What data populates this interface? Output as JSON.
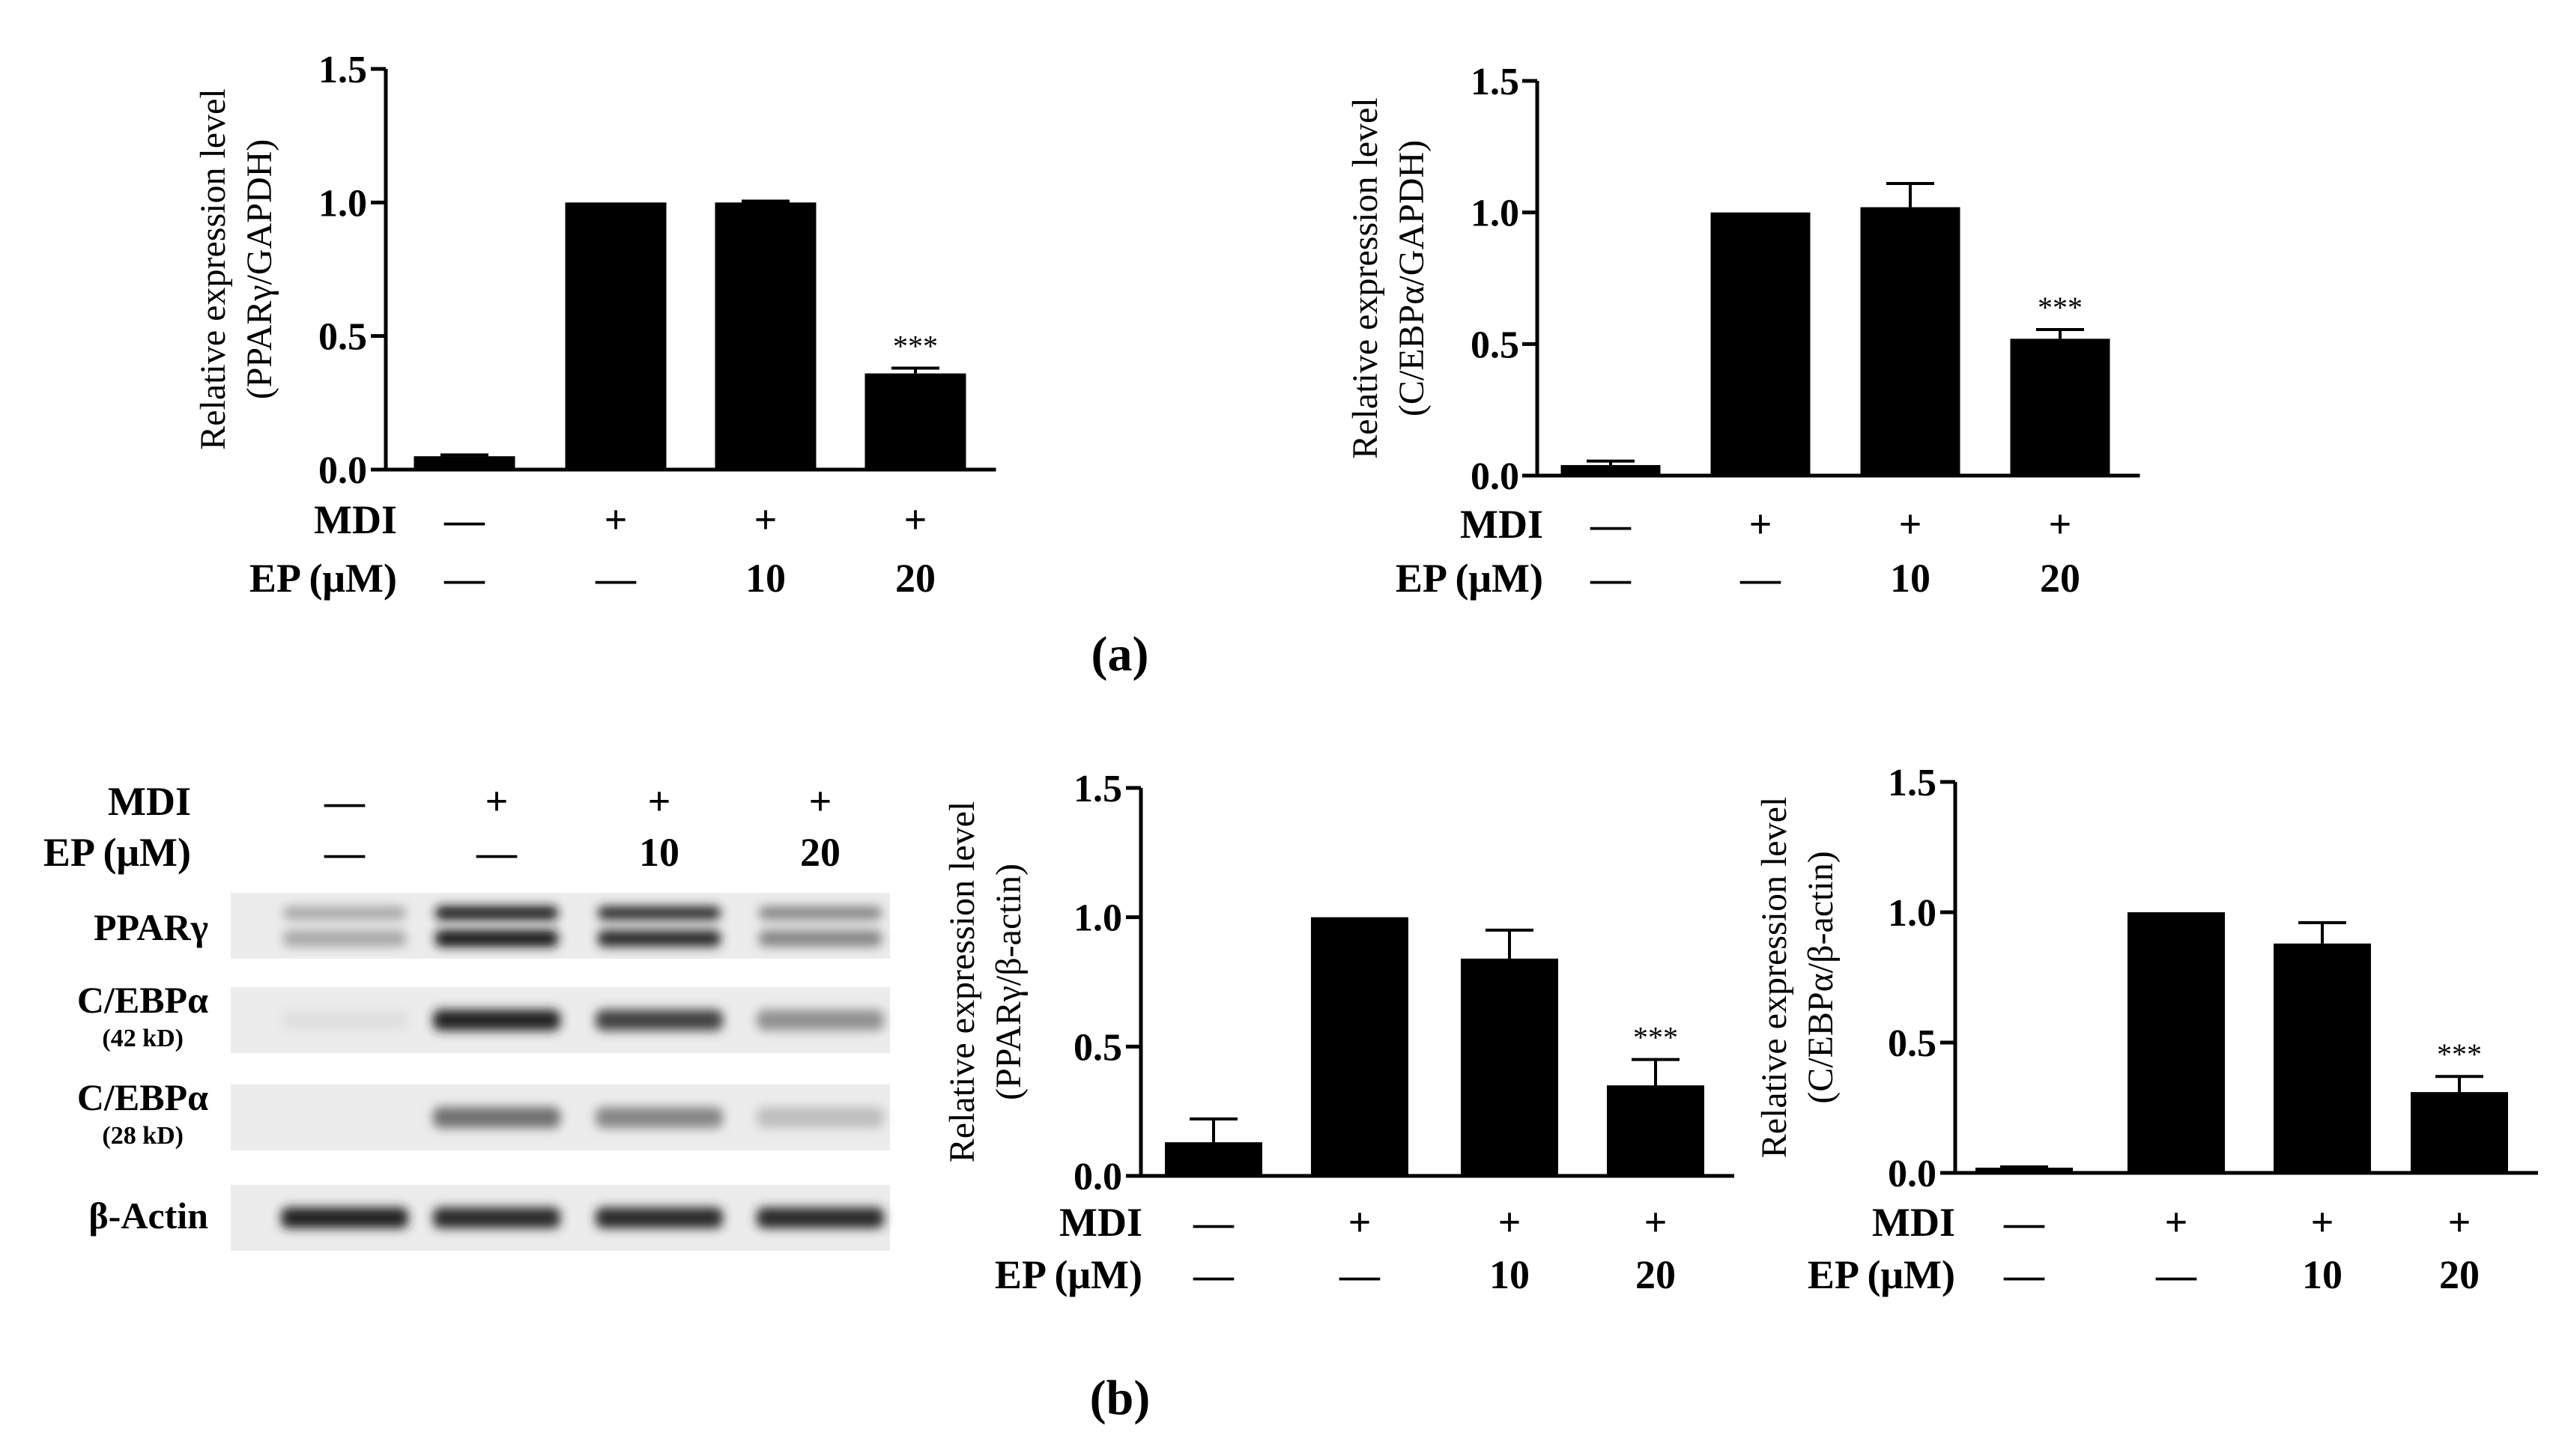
{
  "panel_labels": [
    "(a)",
    "(b)"
  ],
  "blot": {
    "conditions": [
      {
        "label": "MDI",
        "values": [
          "—",
          "+",
          "+",
          "+"
        ]
      },
      {
        "label": "EP (μM)",
        "values": [
          "—",
          "—",
          "10",
          "20"
        ]
      }
    ],
    "rows": [
      {
        "label": "PPARγ",
        "sublabel": "",
        "intensity": [
          0.3,
          0.95,
          0.85,
          0.45
        ],
        "double": true
      },
      {
        "label": "C/EBPα",
        "sublabel": "(42 kD)",
        "intensity": [
          0.05,
          0.9,
          0.75,
          0.4
        ],
        "double": false
      },
      {
        "label": "C/EBPα",
        "sublabel": "(28 kD)",
        "intensity": [
          0.0,
          0.55,
          0.45,
          0.2
        ],
        "double": false
      },
      {
        "label": "β-Actin",
        "sublabel": "",
        "intensity": [
          0.9,
          0.85,
          0.85,
          0.85
        ],
        "double": false
      }
    ]
  },
  "chart_data": [
    {
      "type": "bar",
      "panel": "(a)",
      "ylabel_line1": "Relative expression level",
      "ylabel_line2": "(PPARγ/GAPDH)",
      "ylim": [
        0,
        1.5
      ],
      "yticks": [
        "0.0",
        "0.5",
        "1.0",
        "1.5"
      ],
      "values": [
        0.05,
        1.0,
        1.0,
        0.36
      ],
      "errors": [
        0.005,
        0.0,
        0.005,
        0.02
      ],
      "significance": [
        "",
        "",
        "",
        "***"
      ],
      "conditions": [
        {
          "label": "MDI",
          "values": [
            "—",
            "+",
            "+",
            "+"
          ]
        },
        {
          "label": "EP (μM)",
          "values": [
            "—",
            "—",
            "10",
            "20"
          ]
        }
      ]
    },
    {
      "type": "bar",
      "panel": "(a)",
      "ylabel_line1": "Relative expression level",
      "ylabel_line2": "(C/EBPα/GAPDH)",
      "ylim": [
        0,
        1.5
      ],
      "yticks": [
        "0.0",
        "0.5",
        "1.0",
        "1.5"
      ],
      "values": [
        0.04,
        1.0,
        1.02,
        0.52
      ],
      "errors": [
        0.015,
        0.0,
        0.09,
        0.035
      ],
      "significance": [
        "",
        "",
        "",
        "***"
      ],
      "conditions": [
        {
          "label": "MDI",
          "values": [
            "—",
            "+",
            "+",
            "+"
          ]
        },
        {
          "label": "EP (μM)",
          "values": [
            "—",
            "—",
            "10",
            "20"
          ]
        }
      ]
    },
    {
      "type": "bar",
      "panel": "(b)",
      "ylabel_line1": "Relative expression level",
      "ylabel_line2": "(PPARγ/β-actin)",
      "ylim": [
        0,
        1.5
      ],
      "yticks": [
        "0.0",
        "0.5",
        "1.0",
        "1.5"
      ],
      "values": [
        0.13,
        1.0,
        0.84,
        0.35
      ],
      "errors": [
        0.09,
        0.0,
        0.11,
        0.1
      ],
      "significance": [
        "",
        "",
        "",
        "***"
      ],
      "conditions": [
        {
          "label": "MDI",
          "values": [
            "—",
            "+",
            "+",
            "+"
          ]
        },
        {
          "label": "EP (μM)",
          "values": [
            "—",
            "—",
            "10",
            "20"
          ]
        }
      ]
    },
    {
      "type": "bar",
      "panel": "(b)",
      "ylabel_line1": "Relative expression level",
      "ylabel_line2": "(C/EBPα/β-actin)",
      "ylim": [
        0,
        1.5
      ],
      "yticks": [
        "0.0",
        "0.5",
        "1.0",
        "1.5"
      ],
      "values": [
        0.02,
        1.0,
        0.88,
        0.31
      ],
      "errors": [
        0.003,
        0.0,
        0.08,
        0.06
      ],
      "significance": [
        "",
        "",
        "",
        "***"
      ],
      "conditions": [
        {
          "label": "MDI",
          "values": [
            "—",
            "+",
            "+",
            "+"
          ]
        },
        {
          "label": "EP (μM)",
          "values": [
            "—",
            "—",
            "10",
            "20"
          ]
        }
      ]
    }
  ]
}
